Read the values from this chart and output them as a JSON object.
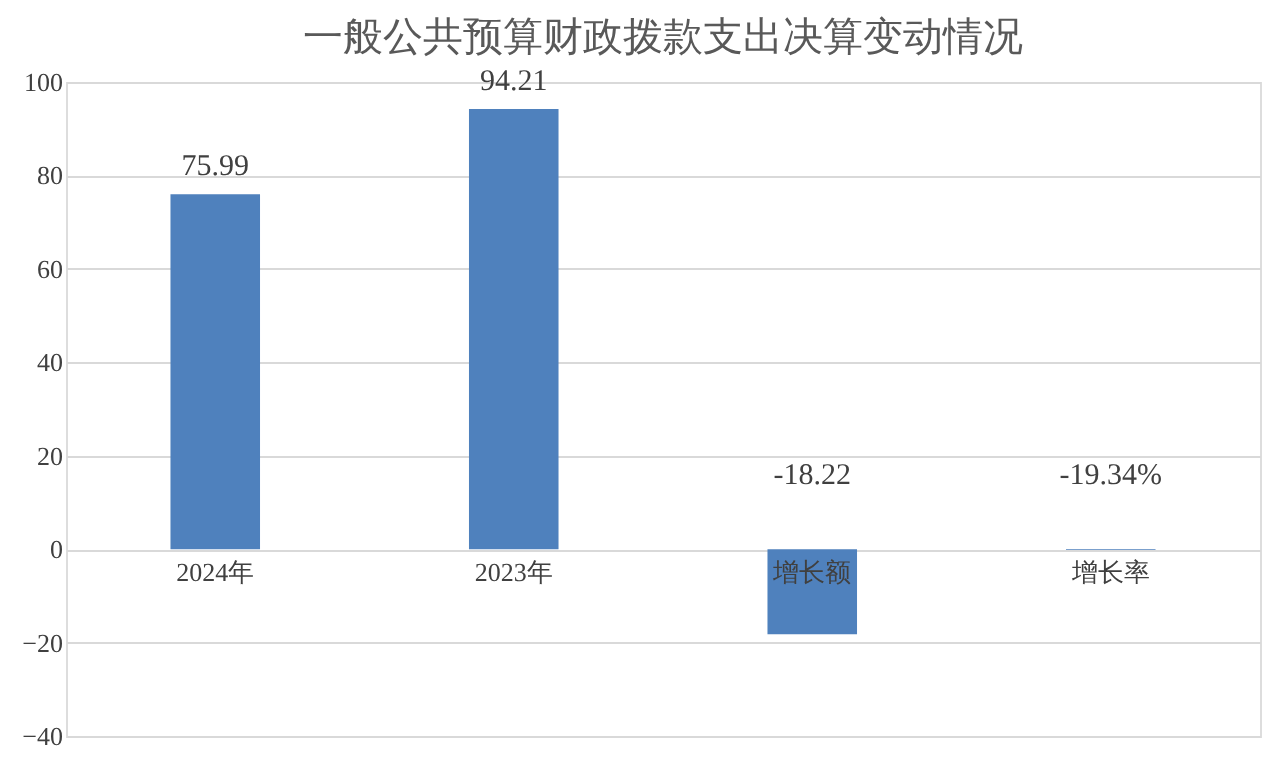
{
  "chart_data": {
    "type": "bar",
    "title": "一般公共预算财政拨款支出决算变动情况",
    "categories": [
      "2024年",
      "2023年",
      "增长额",
      "增长率"
    ],
    "values": [
      75.99,
      94.21,
      -18.22,
      -0.1934
    ],
    "value_labels": [
      "75.99",
      "94.21",
      "-18.22",
      "-19.34%"
    ],
    "color": "#4f81bd",
    "ylim": [
      -40,
      100
    ],
    "yticks": [
      -40,
      -20,
      0,
      20,
      40,
      60,
      80,
      100
    ],
    "grid": "y"
  }
}
